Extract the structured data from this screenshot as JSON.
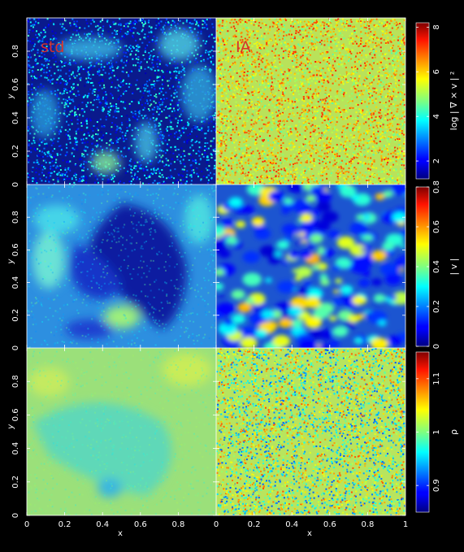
{
  "chart_data": {
    "type": "heatmap",
    "layout": "3 rows x 2 columns, colorbar per row",
    "columns": [
      {
        "label": "std",
        "label_color": "#d8322a"
      },
      {
        "label": "IA",
        "label_color": "#d8322a"
      }
    ],
    "rows": [
      {
        "quantity": "log |∇ × v|²",
        "colorbar_label": "log | ∇ × v | ²",
        "colorbar_ticks": [
          2,
          4,
          6,
          8
        ],
        "colorbar_range": [
          1.2,
          8.2
        ],
        "y_ticks": [
          "0",
          "0.2",
          "0.4",
          "0.6",
          "0.8"
        ],
        "ylabel": "y"
      },
      {
        "quantity": "|v|",
        "colorbar_label": "| v |",
        "colorbar_ticks": [
          0,
          0.2,
          0.4,
          0.6,
          0.8
        ],
        "colorbar_range": [
          0,
          0.8
        ],
        "y_ticks": [
          "0",
          "0.2",
          "0.4",
          "0.6",
          "0.8"
        ],
        "ylabel": "y"
      },
      {
        "quantity": "ρ",
        "colorbar_label": "ρ",
        "colorbar_ticks": [
          0.9,
          1,
          1.1
        ],
        "colorbar_range": [
          0.85,
          1.15
        ],
        "y_ticks": [
          "0",
          "0.2",
          "0.4",
          "0.6",
          "0.8"
        ],
        "ylabel": "y"
      }
    ],
    "x_ticks_left": [
      "0",
      "0.2",
      "0.4",
      "0.6",
      "0.8"
    ],
    "x_ticks_right": [
      "0",
      "0.2",
      "0.4",
      "0.6",
      "0.8",
      "1"
    ],
    "xlabel": "x",
    "xlim": [
      0,
      1
    ],
    "ylim": [
      0,
      1
    ],
    "colormap": "jet",
    "grid": false,
    "axis_color": "#ffffff",
    "background": "#000000"
  }
}
